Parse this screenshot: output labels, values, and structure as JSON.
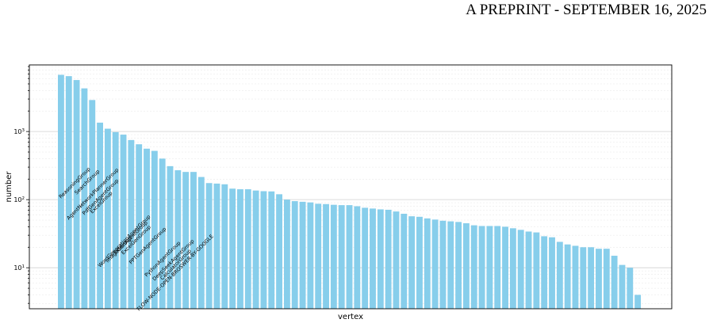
{
  "page_header": "A PREPRINT - SEPTEMBER 16, 2025",
  "chart_data": {
    "type": "bar",
    "xlabel": "vertex",
    "ylabel": "number",
    "yscale": "log",
    "ylim": [
      2.5,
      9500
    ],
    "yticks": [
      {
        "value": 10,
        "base": "10",
        "exp": "1"
      },
      {
        "value": 100,
        "base": "10",
        "exp": "2"
      },
      {
        "value": 1000,
        "base": "10",
        "exp": "3"
      }
    ],
    "grid": "horizontal, major and minor",
    "bar_color": "#87ceeb",
    "labeled_bars": [
      {
        "index": 0,
        "label": "ReasoningGroup"
      },
      {
        "index": 1,
        "label": "AgentNetworkPlannerGroup"
      },
      {
        "index": 2,
        "label": "SearchGroup"
      },
      {
        "index": 3,
        "label": "PdfGenAgentGroup"
      },
      {
        "index": 4,
        "label": "ExcelGroup"
      },
      {
        "index": 5,
        "label": "WordGenerationAgentGroup"
      },
      {
        "index": 6,
        "label": "ImageGenAgentGroup"
      },
      {
        "index": 7,
        "label": "TxtGroup"
      },
      {
        "index": 8,
        "label": "ExcelGenGroup"
      },
      {
        "index": 9,
        "label": "PPTGenAgentGroup"
      },
      {
        "index": 10,
        "label": "FLOW-NODE-OPEN-BROSWER-BY-GOOGLE"
      },
      {
        "index": 11,
        "label": "PythonAgentGroup"
      },
      {
        "index": 12,
        "label": "DeepSeekAgentGroup"
      },
      {
        "index": 13,
        "label": "CalculatorGroup"
      }
    ],
    "values": [
      6800,
      6500,
      5700,
      4300,
      2900,
      1350,
      1100,
      980,
      900,
      750,
      650,
      560,
      520,
      400,
      310,
      270,
      255,
      255,
      215,
      175,
      172,
      168,
      145,
      142,
      142,
      136,
      133,
      132,
      120,
      100,
      95,
      93,
      91,
      87,
      86,
      84,
      83,
      83,
      80,
      76,
      74,
      72,
      71,
      67,
      62,
      57,
      56,
      53,
      51,
      49,
      48,
      47,
      45,
      42,
      41,
      41,
      41,
      40,
      38,
      36,
      34,
      33,
      29,
      28,
      24,
      22,
      21,
      20,
      20,
      19,
      19,
      15,
      11,
      10,
      4
    ]
  }
}
